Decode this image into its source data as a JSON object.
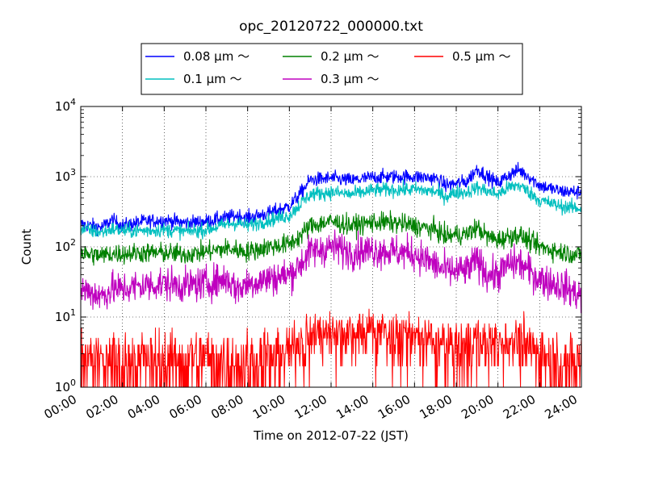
{
  "chart_data": {
    "type": "line",
    "title": "opc_20120722_000000.txt",
    "xlabel": "Time on 2012-07-22 (JST)",
    "ylabel": "Count",
    "yscale": "log",
    "ylim": [
      1,
      10000
    ],
    "xlim": [
      "00:00",
      "24:00"
    ],
    "grid": true,
    "legend_position": "top-center",
    "x_ticks": [
      "00:00",
      "02:00",
      "04:00",
      "06:00",
      "08:00",
      "10:00",
      "12:00",
      "14:00",
      "16:00",
      "18:00",
      "20:00",
      "22:00",
      "24:00"
    ],
    "y_ticks": [
      {
        "base": "10",
        "exp": "0"
      },
      {
        "base": "10",
        "exp": "1"
      },
      {
        "base": "10",
        "exp": "2"
      },
      {
        "base": "10",
        "exp": "3"
      },
      {
        "base": "10",
        "exp": "4"
      }
    ],
    "x_hours": [
      0,
      1,
      1.5,
      2,
      3,
      4,
      5,
      6,
      7,
      7.5,
      8,
      9,
      10,
      10.5,
      11,
      12,
      13,
      14,
      15,
      16,
      17,
      17.5,
      18,
      18.5,
      19,
      19.5,
      20,
      20.5,
      21,
      21.5,
      22,
      23,
      24
    ],
    "series": [
      {
        "name": "0.08 μm ～",
        "color": "#0000ff",
        "noise": 0.05,
        "values": [
          210,
          190,
          240,
          200,
          230,
          240,
          220,
          230,
          260,
          280,
          260,
          300,
          380,
          560,
          900,
          950,
          880,
          980,
          1000,
          1000,
          950,
          750,
          800,
          850,
          1300,
          1000,
          800,
          1050,
          1250,
          1000,
          750,
          620,
          600
        ]
      },
      {
        "name": "0.1 μm ～",
        "color": "#00bfbf",
        "noise": 0.05,
        "values": [
          180,
          160,
          180,
          170,
          170,
          175,
          165,
          175,
          210,
          220,
          200,
          240,
          280,
          400,
          560,
          600,
          560,
          640,
          650,
          660,
          610,
          520,
          600,
          600,
          700,
          620,
          560,
          700,
          760,
          600,
          460,
          380,
          350
        ]
      },
      {
        "name": "0.2 μm ～",
        "color": "#008000",
        "noise": 0.07,
        "values": [
          80,
          75,
          80,
          80,
          82,
          82,
          78,
          85,
          95,
          90,
          85,
          100,
          110,
          140,
          200,
          230,
          200,
          225,
          220,
          200,
          175,
          140,
          150,
          150,
          190,
          140,
          125,
          140,
          150,
          120,
          100,
          85,
          75
        ]
      },
      {
        "name": "0.3 μm ～",
        "color": "#bf00bf",
        "noise": 0.12,
        "values": [
          25,
          20,
          25,
          25,
          28,
          30,
          28,
          30,
          35,
          25,
          30,
          35,
          40,
          55,
          85,
          100,
          85,
          90,
          85,
          80,
          55,
          45,
          45,
          45,
          65,
          40,
          40,
          55,
          60,
          45,
          35,
          28,
          20
        ]
      },
      {
        "name": "0.5 μm ～",
        "color": "#ff0000",
        "discrete": true,
        "values": [
          2.5,
          2.5,
          2.5,
          2.5,
          2.5,
          2.5,
          2.5,
          2.5,
          2.5,
          2.3,
          2.3,
          2.6,
          3.5,
          4.5,
          5.5,
          6.5,
          6,
          6.5,
          6,
          5.5,
          4.5,
          4,
          4,
          4,
          5,
          4.5,
          4.5,
          5,
          5,
          4,
          3,
          2.5,
          2.5
        ]
      }
    ]
  }
}
